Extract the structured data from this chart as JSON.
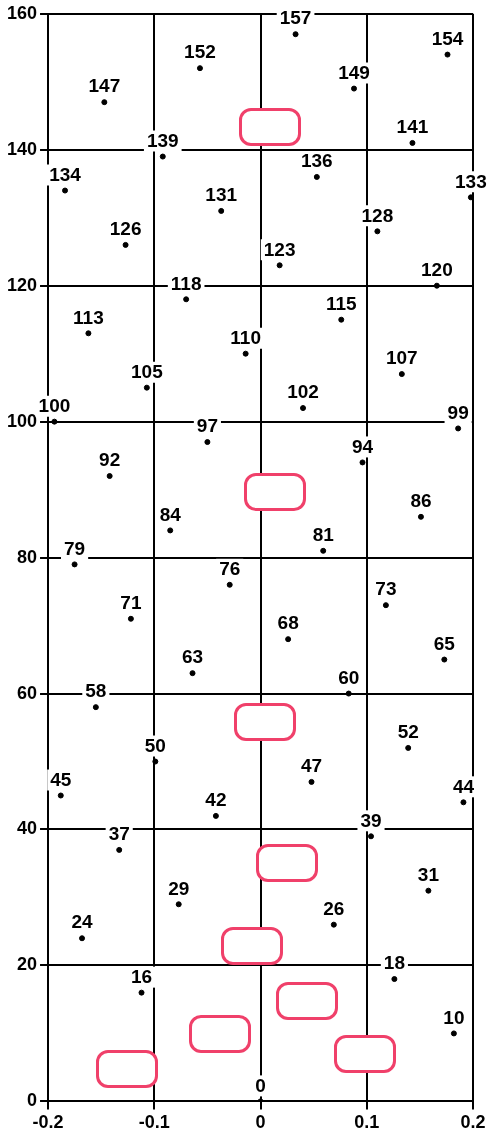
{
  "chart_data": {
    "type": "scatter",
    "marker": "circle",
    "data_labels": true,
    "grid": true,
    "color": "#000000",
    "x": [
      0.033,
      0.176,
      -0.057,
      0.088,
      -0.147,
      0.143,
      -0.092,
      0.053,
      -0.184,
      0.198,
      -0.037,
      0.11,
      -0.127,
      0.018,
      0.166,
      -0.07,
      0.076,
      -0.162,
      -0.014,
      0.133,
      -0.107,
      0.04,
      -0.194,
      0.186,
      -0.05,
      0.096,
      -0.142,
      0.151,
      -0.085,
      0.059,
      -0.175,
      -0.029,
      0.118,
      -0.122,
      0.026,
      0.173,
      -0.064,
      0.083,
      -0.155,
      0.139,
      -0.099,
      0.048,
      -0.188,
      0.191,
      -0.042,
      0.104,
      -0.133,
      0.158,
      -0.077,
      0.069,
      -0.168,
      0.126,
      -0.112,
      0.182,
      0
    ],
    "values": [
      157,
      154,
      152,
      149,
      147,
      141,
      139,
      136,
      134,
      133,
      131,
      128,
      126,
      123,
      120,
      118,
      115,
      113,
      110,
      107,
      105,
      102,
      100,
      99,
      97,
      94,
      92,
      86,
      84,
      81,
      79,
      76,
      73,
      71,
      68,
      65,
      63,
      60,
      58,
      52,
      50,
      47,
      45,
      44,
      42,
      39,
      37,
      31,
      29,
      26,
      24,
      18,
      16,
      10,
      0
    ],
    "xlim": [
      -0.2,
      0.2
    ],
    "xticks": [
      -0.2,
      -0.1,
      0,
      0.1,
      0.2
    ],
    "ylim": [
      0,
      160
    ],
    "yticks": [
      0,
      20,
      40,
      60,
      80,
      100,
      120,
      140,
      160
    ]
  }
}
